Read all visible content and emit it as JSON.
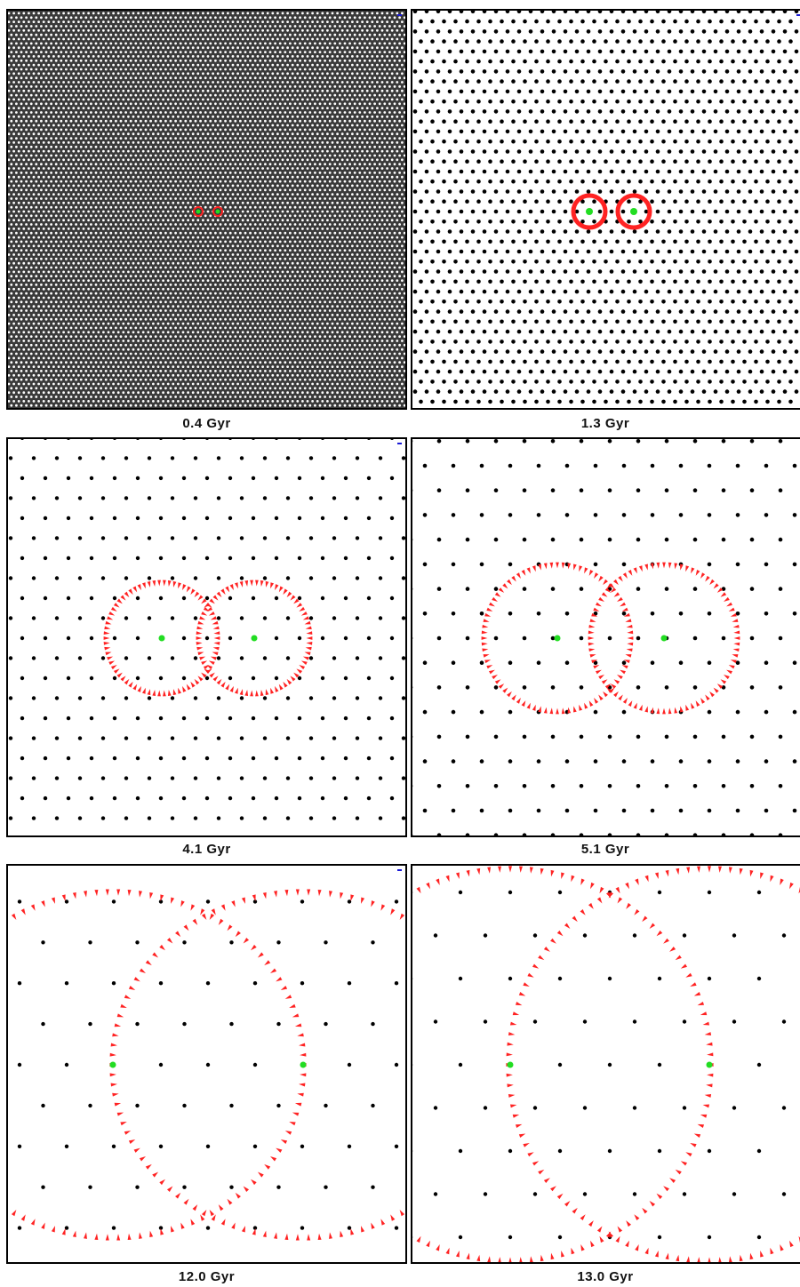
{
  "panels": [
    {
      "id": "p1",
      "label": "0.4 Gyr",
      "background": "dense-white-lattice-on-gray",
      "scale_tick": true
    },
    {
      "id": "p2",
      "label": "1.3 Gyr",
      "background": "white",
      "scale_tick": true
    },
    {
      "id": "p3",
      "label": "4.1 Gyr",
      "background": "white",
      "scale_tick": true
    },
    {
      "id": "p4",
      "label": "5.1 Gyr",
      "background": "white",
      "scale_tick": false
    },
    {
      "id": "p5",
      "label": "12.0 Gyr",
      "background": "white",
      "scale_tick": true
    },
    {
      "id": "p6",
      "label": "13.0 Gyr",
      "background": "white",
      "scale_tick": false
    }
  ],
  "colors": {
    "lattice_point": "#000000",
    "center_point": "#22dd22",
    "horizon_marker": "#ff2222",
    "scale_tick": "#1a1ad6",
    "dense_background": "#3a3a3a",
    "dense_point": "#ffffff"
  }
}
